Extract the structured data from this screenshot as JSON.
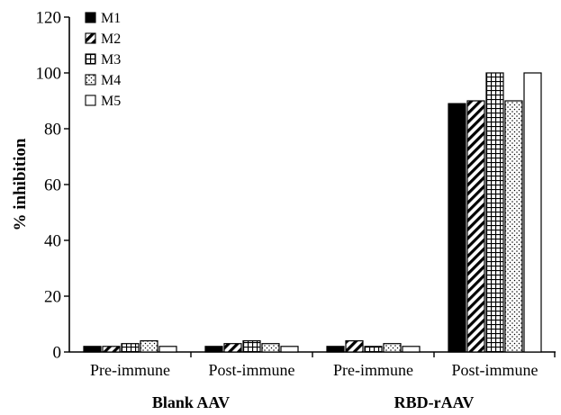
{
  "chart_data": {
    "type": "bar",
    "title": "",
    "xlabel": "",
    "ylabel": "% inhibition",
    "ylim": [
      0,
      120
    ],
    "yticks": [
      0,
      20,
      40,
      60,
      80,
      100,
      120
    ],
    "grid": false,
    "legend_position": "top-left",
    "categories": [
      "Pre-immune",
      "Post-immune",
      "Pre-immune",
      "Post-immune"
    ],
    "groups": [
      {
        "label": "Blank AAV",
        "categories": [
          0,
          1
        ]
      },
      {
        "label": "RBD-rAAV",
        "categories": [
          2,
          3
        ]
      }
    ],
    "series": [
      {
        "name": "M1",
        "pattern": "solid-black",
        "values": [
          2,
          2,
          2,
          89
        ]
      },
      {
        "name": "M2",
        "pattern": "diagonal-hatch",
        "values": [
          2,
          3,
          4,
          90
        ]
      },
      {
        "name": "M3",
        "pattern": "grid-hatch",
        "values": [
          3,
          4,
          2,
          100
        ]
      },
      {
        "name": "M4",
        "pattern": "dots",
        "values": [
          4,
          3,
          3,
          90
        ]
      },
      {
        "name": "M5",
        "pattern": "white",
        "values": [
          2,
          2,
          2,
          100
        ]
      }
    ]
  }
}
